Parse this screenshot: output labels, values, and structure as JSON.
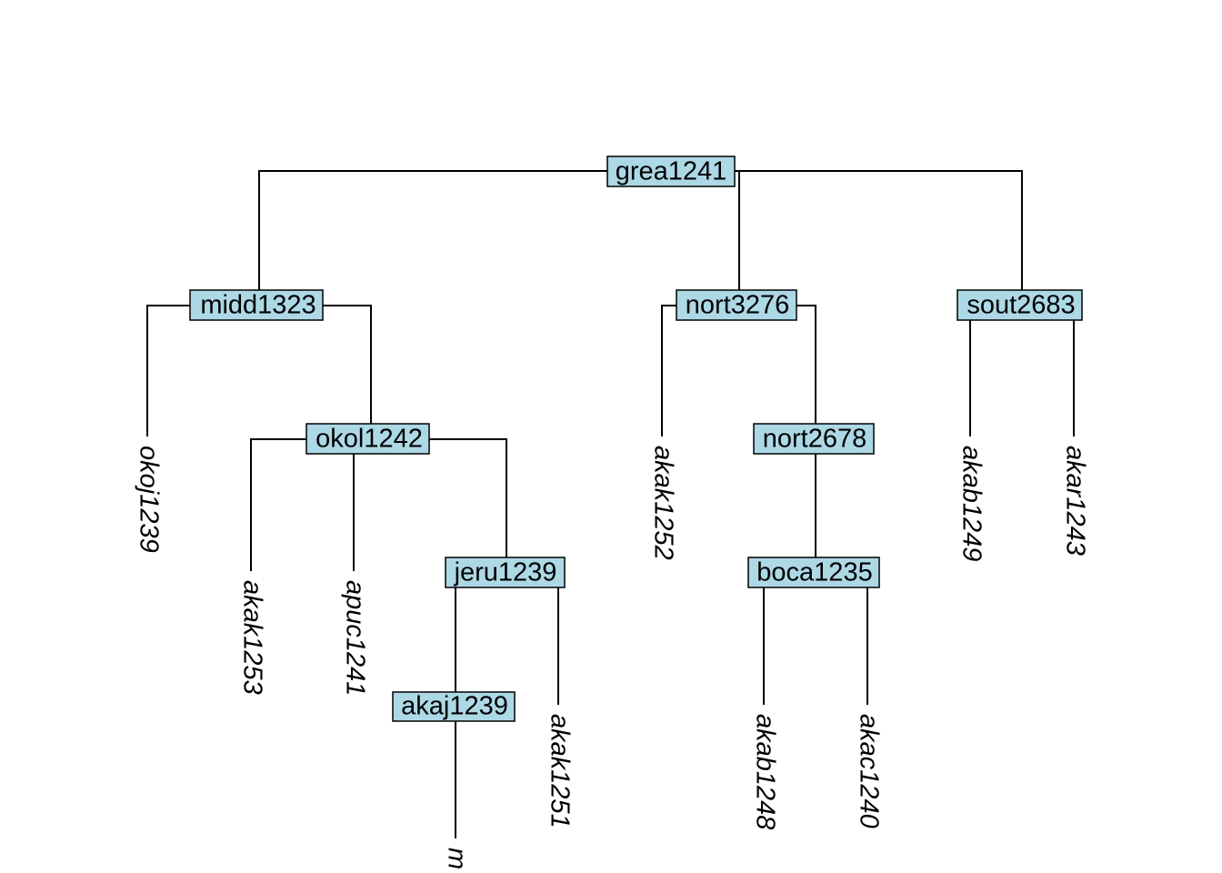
{
  "nodes": [
    "grea1241",
    "midd1323",
    "nort3276",
    "sout2683",
    "okol1242",
    "nort2678",
    "jeru1239",
    "boca1235",
    "akaj1239"
  ],
  "leaves": [
    "okoj1239",
    "akak1253",
    "apuc1241",
    "akak1251",
    "m",
    "akak1252",
    "akab1248",
    "akac1240",
    "akab1249",
    "akar1243"
  ]
}
